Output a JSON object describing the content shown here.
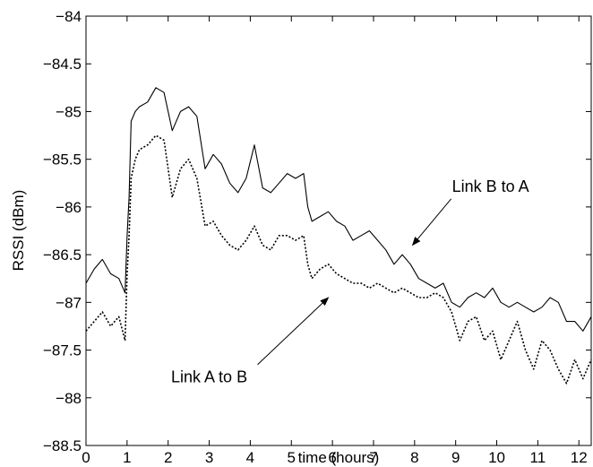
{
  "chart_data": {
    "type": "line",
    "title": "",
    "xlabel": "time (hours)",
    "ylabel": "RSSI (dBm)",
    "xlim": [
      0,
      12.3
    ],
    "ylim": [
      -88.5,
      -84
    ],
    "xticks": [
      0,
      1,
      2,
      3,
      4,
      5,
      6,
      7,
      8,
      9,
      10,
      11,
      12
    ],
    "xtick_labels": [
      "0",
      "1",
      "2",
      "3",
      "4",
      "5",
      "6",
      "7",
      "8",
      "9",
      "10",
      "11",
      "12"
    ],
    "yticks": [
      -84,
      -84.5,
      -85,
      -85.5,
      -86,
      -86.5,
      -87,
      -87.5,
      -88,
      -88.5
    ],
    "ytick_labels": [
      "−84",
      "−84.5",
      "−85",
      "−85.5",
      "−86",
      "−86.5",
      "−87",
      "−87.5",
      "−88",
      "−88.5"
    ],
    "grid": false,
    "legend": "none",
    "series": [
      {
        "style": "solid",
        "color": "#000000",
        "x": [
          0,
          0.2,
          0.4,
          0.6,
          0.8,
          0.95,
          1.0,
          1.05,
          1.1,
          1.2,
          1.3,
          1.5,
          1.7,
          1.9,
          2.1,
          2.3,
          2.5,
          2.7,
          2.9,
          3.1,
          3.3,
          3.5,
          3.7,
          3.9,
          4.1,
          4.3,
          4.5,
          4.7,
          4.9,
          5.1,
          5.3,
          5.4,
          5.5,
          5.7,
          5.9,
          6.1,
          6.3,
          6.5,
          6.7,
          6.9,
          7.1,
          7.3,
          7.5,
          7.7,
          7.9,
          8.1,
          8.3,
          8.5,
          8.7,
          8.9,
          9.1,
          9.3,
          9.5,
          9.7,
          9.9,
          10.1,
          10.3,
          10.5,
          10.7,
          10.9,
          11.1,
          11.3,
          11.5,
          11.7,
          11.9,
          12.1,
          12.3
        ],
        "y": [
          -86.8,
          -86.65,
          -86.55,
          -86.7,
          -86.75,
          -86.9,
          -86.3,
          -85.9,
          -85.1,
          -85.0,
          -84.95,
          -84.9,
          -84.75,
          -84.8,
          -85.2,
          -85.0,
          -84.95,
          -85.05,
          -85.6,
          -85.45,
          -85.55,
          -85.75,
          -85.85,
          -85.7,
          -85.35,
          -85.8,
          -85.85,
          -85.75,
          -85.65,
          -85.7,
          -85.65,
          -86.0,
          -86.15,
          -86.1,
          -86.05,
          -86.15,
          -86.2,
          -86.35,
          -86.3,
          -86.25,
          -86.35,
          -86.45,
          -86.6,
          -86.5,
          -86.6,
          -86.75,
          -86.8,
          -86.85,
          -86.8,
          -87.0,
          -87.05,
          -86.95,
          -86.9,
          -86.95,
          -86.85,
          -87.0,
          -87.05,
          -87.0,
          -87.05,
          -87.1,
          -87.05,
          -86.95,
          -87.0,
          -87.2,
          -87.2,
          -87.3,
          -87.15
        ]
      },
      {
        "style": "dotted",
        "color": "#000000",
        "x": [
          0,
          0.2,
          0.4,
          0.6,
          0.8,
          0.95,
          1.0,
          1.05,
          1.1,
          1.2,
          1.3,
          1.5,
          1.7,
          1.9,
          2.1,
          2.3,
          2.5,
          2.7,
          2.9,
          3.1,
          3.3,
          3.5,
          3.7,
          3.9,
          4.1,
          4.3,
          4.5,
          4.7,
          4.9,
          5.1,
          5.3,
          5.4,
          5.5,
          5.7,
          5.9,
          6.1,
          6.3,
          6.5,
          6.7,
          6.9,
          7.1,
          7.3,
          7.5,
          7.7,
          7.9,
          8.1,
          8.3,
          8.5,
          8.7,
          8.9,
          9.1,
          9.3,
          9.5,
          9.7,
          9.9,
          10.1,
          10.3,
          10.5,
          10.7,
          10.9,
          11.1,
          11.3,
          11.5,
          11.7,
          11.9,
          12.1,
          12.3
        ],
        "y": [
          -87.3,
          -87.2,
          -87.1,
          -87.25,
          -87.15,
          -87.4,
          -86.7,
          -86.3,
          -85.7,
          -85.5,
          -85.4,
          -85.35,
          -85.25,
          -85.3,
          -85.9,
          -85.6,
          -85.5,
          -85.7,
          -86.2,
          -86.15,
          -86.3,
          -86.4,
          -86.45,
          -86.35,
          -86.2,
          -86.4,
          -86.45,
          -86.3,
          -86.3,
          -86.35,
          -86.3,
          -86.6,
          -86.75,
          -86.65,
          -86.6,
          -86.7,
          -86.75,
          -86.8,
          -86.8,
          -86.85,
          -86.8,
          -86.85,
          -86.9,
          -86.85,
          -86.9,
          -86.95,
          -86.95,
          -86.9,
          -86.95,
          -87.1,
          -87.4,
          -87.2,
          -87.15,
          -87.4,
          -87.3,
          -87.6,
          -87.4,
          -87.2,
          -87.5,
          -87.7,
          -87.4,
          -87.5,
          -87.7,
          -87.85,
          -87.6,
          -87.8,
          -87.6
        ]
      }
    ],
    "annotations": [
      {
        "text": "Link B to A",
        "label_x": 9.85,
        "label_y": -85.84,
        "arrow_to_x": 7.95,
        "arrow_to_y": -86.4
      },
      {
        "text": "Link A to B",
        "label_x": 3.0,
        "label_y": -87.84,
        "arrow_to_x": 5.9,
        "arrow_to_y": -86.95
      }
    ]
  }
}
